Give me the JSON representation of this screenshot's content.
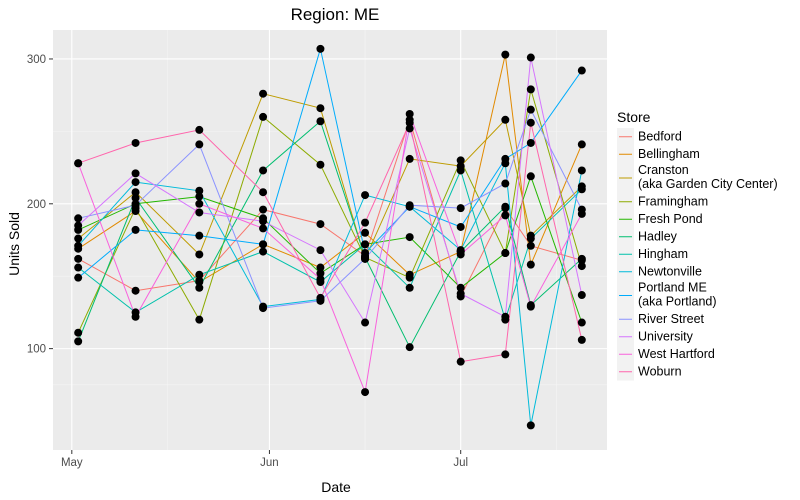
{
  "chart_data": {
    "type": "line",
    "title": "Region: ME",
    "xlabel": "Date",
    "ylabel": "Units Sold",
    "x_ticks": [
      "May",
      "Jun",
      "Jul"
    ],
    "y_ticks": [
      100,
      200,
      300
    ],
    "ylim": [
      30,
      320
    ],
    "grid": true,
    "legend_title": "Store",
    "legend_position": "right",
    "x": [
      "2017-05-02",
      "2017-05-11",
      "2017-05-21",
      "2017-05-31",
      "2017-06-09",
      "2017-06-16",
      "2017-06-23",
      "2017-07-01",
      "2017-07-08",
      "2017-07-12",
      "2017-07-20"
    ],
    "series": [
      {
        "name": "Bedford",
        "color": "#F8766D",
        "values": [
          162,
          140,
          147,
          196,
          186,
          164,
          258,
          136,
          197,
          171,
          161
        ]
      },
      {
        "name": "Bellingham",
        "color": "#E18A00",
        "values": [
          169,
          195,
          146,
          172,
          156,
          180,
          151,
          167,
          303,
          158,
          241
        ]
      },
      {
        "name": "Cranston\n(aka Garden City Center)",
        "color": "#BE9C00",
        "values": [
          176,
          208,
          165,
          276,
          266,
          162,
          231,
          226,
          258,
          178,
          212
        ]
      },
      {
        "name": "Framingham",
        "color": "#8CAB00",
        "values": [
          111,
          197,
          120,
          260,
          227,
          163,
          149,
          230,
          166,
          279,
          157
        ]
      },
      {
        "name": "Fresh Pond",
        "color": "#24B700",
        "values": [
          182,
          200,
          205,
          190,
          152,
          172,
          177,
          142,
          166,
          219,
          118
        ]
      },
      {
        "name": "Hadley",
        "color": "#00BE70",
        "values": [
          105,
          204,
          142,
          223,
          257,
          163,
          101,
          167,
          198,
          130,
          162
        ]
      },
      {
        "name": "Hingham",
        "color": "#00C1AB",
        "values": [
          156,
          125,
          151,
          167,
          146,
          172,
          142,
          223,
          120,
          176,
          210
        ]
      },
      {
        "name": "Newtonville",
        "color": "#00BBDA",
        "values": [
          171,
          215,
          209,
          129,
          134,
          206,
          198,
          168,
          228,
          47,
          223
        ]
      },
      {
        "name": "Portland ME\n(aka Portland)",
        "color": "#00ACFC",
        "values": [
          149,
          182,
          178,
          172,
          307,
          166,
          198,
          184,
          231,
          242,
          292
        ]
      },
      {
        "name": "River Street",
        "color": "#8B93FF",
        "values": [
          190,
          199,
          241,
          128,
          133,
          162,
          199,
          197,
          214,
          265,
          196
        ]
      },
      {
        "name": "University",
        "color": "#D575FE",
        "values": [
          185,
          221,
          194,
          188,
          168,
          118,
          252,
          138,
          122,
          301,
          137
        ]
      },
      {
        "name": "West Hartford",
        "color": "#F962DD",
        "values": [
          228,
          122,
          200,
          183,
          148,
          70,
          262,
          165,
          192,
          129,
          193
        ]
      },
      {
        "name": "Woburn",
        "color": "#FF65AC",
        "values": [
          228,
          242,
          251,
          208,
          135,
          187,
          256,
          91,
          96,
          256,
          106
        ]
      }
    ]
  }
}
